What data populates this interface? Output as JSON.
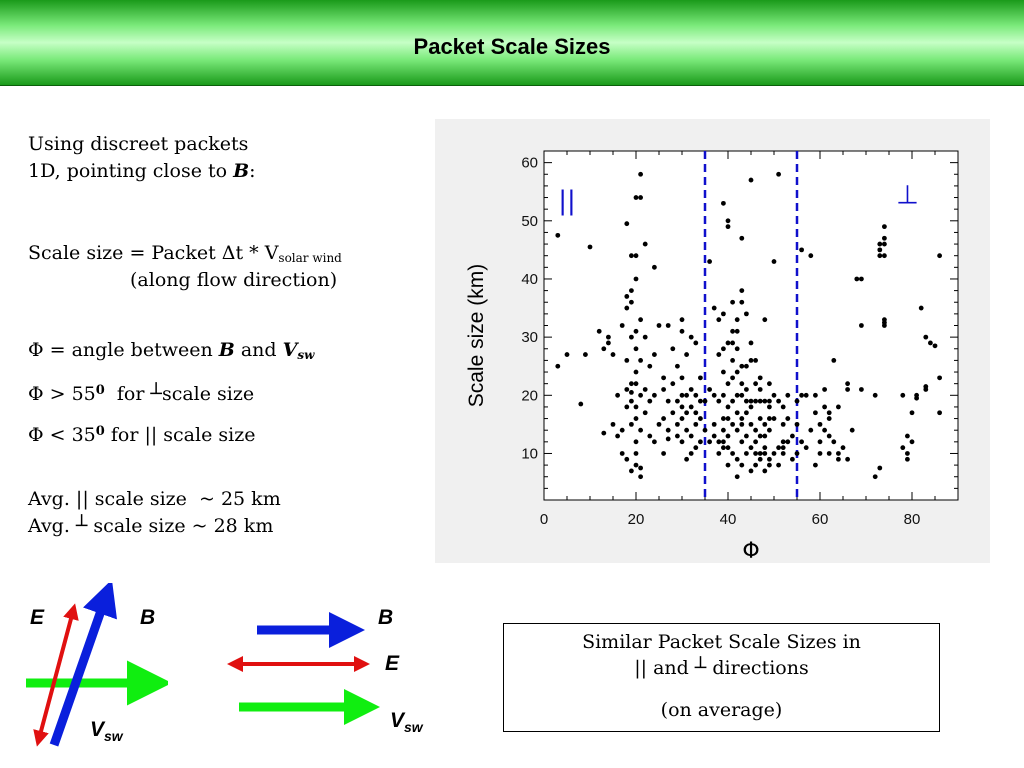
{
  "slide": {
    "title": "Packet Scale Sizes"
  },
  "left_text": {
    "line1": "Using discreet packets",
    "line2_prefix": "1D, pointing close to ",
    "line2_b": "B",
    "line2_suffix": ":",
    "scale_prefix": "Scale size = Packet Δt * V",
    "scale_sub": "solar wind",
    "scale_line2": "(along flow direction)",
    "phi_prefix": "Φ = angle between ",
    "phi_b": "B",
    "phi_and": " and ",
    "phi_v": "V",
    "phi_v_sub": "sw",
    "perp_prefix": "Φ > 55",
    "perp_deg": "0",
    "perp_for": "  for ",
    "perp_symbol": "┴",
    "perp_suffix": "scale size",
    "par_prefix": "Φ < 35",
    "par_deg": "0",
    "par_suffix": " for || scale size",
    "avg1": "Avg. || scale size  ~ 25 km",
    "avg2_prefix": "Avg. ",
    "avg2_symbol": "┴",
    "avg2_suffix": " scale size ~ 28 km"
  },
  "chart_data": {
    "type": "scatter",
    "xlabel": "Φ",
    "ylabel": "Scale size (km)",
    "xlim": [
      0,
      90
    ],
    "ylim": [
      2,
      62
    ],
    "xticks": [
      0,
      20,
      40,
      60,
      80
    ],
    "yticks": [
      10,
      20,
      30,
      40,
      50,
      60
    ],
    "vlines": [
      35,
      55
    ],
    "vline_color": "#1010cc",
    "annotations": [
      {
        "text": "||",
        "x": 5,
        "y": 52
      },
      {
        "text": "⊥",
        "x": 79,
        "y": 53
      }
    ],
    "points": [
      [
        3,
        47.5
      ],
      [
        3,
        25
      ],
      [
        5,
        27
      ],
      [
        8,
        18.5
      ],
      [
        9,
        27
      ],
      [
        10,
        45.5
      ],
      [
        12,
        31
      ],
      [
        13,
        13.5
      ],
      [
        13,
        28
      ],
      [
        14,
        29
      ],
      [
        14,
        30
      ],
      [
        15,
        15
      ],
      [
        15,
        27
      ],
      [
        16,
        13
      ],
      [
        16,
        20
      ],
      [
        17,
        10
      ],
      [
        17,
        32
      ],
      [
        17,
        14
      ],
      [
        18,
        9
      ],
      [
        18,
        18
      ],
      [
        18,
        21
      ],
      [
        18,
        26
      ],
      [
        18,
        35
      ],
      [
        18,
        37
      ],
      [
        18,
        49.5
      ],
      [
        19,
        7
      ],
      [
        19,
        15
      ],
      [
        19,
        19
      ],
      [
        19,
        22
      ],
      [
        19,
        30
      ],
      [
        19,
        38
      ],
      [
        19,
        44
      ],
      [
        19,
        20.5
      ],
      [
        19,
        36
      ],
      [
        20,
        12
      ],
      [
        20,
        18
      ],
      [
        20,
        22
      ],
      [
        20,
        24
      ],
      [
        20,
        28
      ],
      [
        20,
        31
      ],
      [
        20,
        40
      ],
      [
        20,
        44
      ],
      [
        20,
        54
      ],
      [
        20,
        10
      ],
      [
        20,
        16
      ],
      [
        20,
        8
      ],
      [
        21,
        6
      ],
      [
        21,
        14
      ],
      [
        21,
        20
      ],
      [
        21,
        26
      ],
      [
        21,
        33
      ],
      [
        21,
        58
      ],
      [
        21,
        54
      ],
      [
        21,
        7.5
      ],
      [
        22,
        17
      ],
      [
        22,
        21
      ],
      [
        22,
        30
      ],
      [
        22,
        46
      ],
      [
        23,
        13
      ],
      [
        23,
        19
      ],
      [
        23,
        25
      ],
      [
        24,
        12
      ],
      [
        24,
        20
      ],
      [
        24,
        27
      ],
      [
        24,
        42
      ],
      [
        25,
        15
      ],
      [
        25,
        32
      ],
      [
        26,
        16
      ],
      [
        26,
        21
      ],
      [
        26,
        23
      ],
      [
        26,
        10
      ],
      [
        27,
        14
      ],
      [
        27,
        19
      ],
      [
        27,
        32
      ],
      [
        27,
        12.5
      ],
      [
        28,
        17
      ],
      [
        28,
        22
      ],
      [
        28,
        28
      ],
      [
        29,
        13
      ],
      [
        29,
        15
      ],
      [
        29,
        19
      ],
      [
        29,
        25
      ],
      [
        30,
        12
      ],
      [
        30,
        16
      ],
      [
        30,
        18
      ],
      [
        30,
        23
      ],
      [
        30,
        31
      ],
      [
        30,
        33
      ],
      [
        30,
        20
      ],
      [
        31,
        9
      ],
      [
        31,
        14
      ],
      [
        31,
        17
      ],
      [
        31,
        20
      ],
      [
        31,
        27
      ],
      [
        32,
        10
      ],
      [
        32,
        13
      ],
      [
        32,
        18
      ],
      [
        32,
        21
      ],
      [
        32,
        30
      ],
      [
        33,
        11
      ],
      [
        33,
        15
      ],
      [
        33,
        17
      ],
      [
        33,
        20
      ],
      [
        33,
        29
      ],
      [
        34,
        12
      ],
      [
        34,
        16
      ],
      [
        34,
        19
      ],
      [
        34,
        23
      ],
      [
        35,
        14
      ],
      [
        35,
        19
      ],
      [
        36,
        12
      ],
      [
        36,
        21
      ],
      [
        36,
        43
      ],
      [
        37,
        15
      ],
      [
        37,
        20
      ],
      [
        37,
        35
      ],
      [
        37,
        13
      ],
      [
        38,
        12
      ],
      [
        38,
        19
      ],
      [
        38,
        27
      ],
      [
        38,
        33
      ],
      [
        38,
        10
      ],
      [
        39,
        11
      ],
      [
        39,
        16
      ],
      [
        39,
        20
      ],
      [
        39,
        24
      ],
      [
        39,
        28
      ],
      [
        39,
        34
      ],
      [
        39,
        14
      ],
      [
        39,
        12
      ],
      [
        39,
        53
      ],
      [
        40,
        8
      ],
      [
        40,
        11
      ],
      [
        40,
        13
      ],
      [
        40,
        16
      ],
      [
        40,
        18
      ],
      [
        40,
        22
      ],
      [
        40,
        29
      ],
      [
        40,
        50
      ],
      [
        40,
        49
      ],
      [
        41,
        10
      ],
      [
        41,
        15
      ],
      [
        41,
        19
      ],
      [
        41,
        23
      ],
      [
        41,
        26
      ],
      [
        41,
        31
      ],
      [
        41,
        36
      ],
      [
        41,
        29
      ],
      [
        42,
        6
      ],
      [
        42,
        9
      ],
      [
        42,
        14
      ],
      [
        42,
        17
      ],
      [
        42,
        20
      ],
      [
        42,
        24
      ],
      [
        42,
        28
      ],
      [
        42,
        31
      ],
      [
        42,
        33
      ],
      [
        43,
        8
      ],
      [
        43,
        12
      ],
      [
        43,
        15
      ],
      [
        43,
        16
      ],
      [
        43,
        20
      ],
      [
        43,
        22
      ],
      [
        43,
        25
      ],
      [
        43,
        36
      ],
      [
        43,
        38
      ],
      [
        43,
        47
      ],
      [
        44,
        10
      ],
      [
        44,
        13
      ],
      [
        44,
        17
      ],
      [
        44,
        19
      ],
      [
        44,
        25
      ],
      [
        44,
        34
      ],
      [
        44,
        21
      ],
      [
        45,
        7
      ],
      [
        45,
        11
      ],
      [
        45,
        15
      ],
      [
        45,
        18
      ],
      [
        45,
        26
      ],
      [
        45,
        29
      ],
      [
        45,
        57
      ],
      [
        45,
        19
      ],
      [
        46,
        8
      ],
      [
        46,
        12
      ],
      [
        46,
        14
      ],
      [
        46,
        19
      ],
      [
        46,
        22
      ],
      [
        46,
        26
      ],
      [
        46,
        10
      ],
      [
        47,
        9
      ],
      [
        47,
        13
      ],
      [
        47,
        16
      ],
      [
        47,
        19
      ],
      [
        47,
        21
      ],
      [
        47,
        23
      ],
      [
        47,
        10
      ],
      [
        48,
        7
      ],
      [
        48,
        10
      ],
      [
        48,
        11
      ],
      [
        48,
        15
      ],
      [
        48,
        19
      ],
      [
        48,
        33
      ],
      [
        48,
        13
      ],
      [
        49,
        8
      ],
      [
        49,
        14
      ],
      [
        49,
        16
      ],
      [
        49,
        19
      ],
      [
        49,
        22
      ],
      [
        49,
        18
      ],
      [
        49,
        9
      ],
      [
        50,
        10
      ],
      [
        50,
        16
      ],
      [
        50,
        20
      ],
      [
        50,
        43
      ],
      [
        51,
        8
      ],
      [
        51,
        11
      ],
      [
        51,
        19
      ],
      [
        51,
        58
      ],
      [
        52,
        12
      ],
      [
        52,
        15
      ],
      [
        52,
        18
      ],
      [
        52,
        10
      ],
      [
        52,
        11
      ],
      [
        53,
        12
      ],
      [
        53,
        16
      ],
      [
        53,
        20
      ],
      [
        54,
        9
      ],
      [
        54,
        13
      ],
      [
        55,
        10
      ],
      [
        55,
        15
      ],
      [
        55,
        19
      ],
      [
        56,
        20
      ],
      [
        56,
        12
      ],
      [
        56,
        45
      ],
      [
        57,
        11
      ],
      [
        57,
        20
      ],
      [
        58,
        14
      ],
      [
        58,
        44
      ],
      [
        59,
        8
      ],
      [
        59,
        17
      ],
      [
        59,
        20
      ],
      [
        60,
        10
      ],
      [
        60,
        12
      ],
      [
        60,
        15
      ],
      [
        61,
        14
      ],
      [
        61,
        18
      ],
      [
        61,
        21
      ],
      [
        62,
        10
      ],
      [
        62,
        13
      ],
      [
        62,
        16
      ],
      [
        62,
        17
      ],
      [
        63,
        12
      ],
      [
        63,
        26
      ],
      [
        64,
        9
      ],
      [
        64,
        10
      ],
      [
        64,
        18
      ],
      [
        65,
        11
      ],
      [
        66,
        9
      ],
      [
        66,
        22
      ],
      [
        66,
        21
      ],
      [
        67,
        14
      ],
      [
        68,
        40
      ],
      [
        69,
        21
      ],
      [
        69,
        32
      ],
      [
        69,
        40
      ],
      [
        72,
        6
      ],
      [
        72,
        20
      ],
      [
        73,
        7.5
      ],
      [
        73,
        44
      ],
      [
        73,
        46
      ],
      [
        73,
        45
      ],
      [
        74,
        33
      ],
      [
        74,
        32
      ],
      [
        74,
        44
      ],
      [
        74,
        47
      ],
      [
        74,
        49
      ],
      [
        74,
        46
      ],
      [
        74,
        32.5
      ],
      [
        78,
        20
      ],
      [
        78,
        11
      ],
      [
        79,
        10
      ],
      [
        79,
        9
      ],
      [
        79,
        13
      ],
      [
        80,
        12
      ],
      [
        80,
        17
      ],
      [
        81,
        19.5
      ],
      [
        81,
        20
      ],
      [
        82,
        35
      ],
      [
        83,
        30
      ],
      [
        83,
        21
      ],
      [
        83,
        21.5
      ],
      [
        84,
        29
      ],
      [
        86,
        44
      ],
      [
        86,
        17
      ],
      [
        86,
        23
      ],
      [
        85,
        28.5
      ]
    ]
  },
  "diagrams": {
    "left": {
      "e": "E",
      "b": "B",
      "v": "V",
      "v_sub": "sw"
    },
    "middle": {
      "b": "B",
      "e": "E",
      "v": "V",
      "v_sub": "sw"
    },
    "colors": {
      "b": "#0a1fdc",
      "e": "#e01010",
      "v": "#10ee10"
    }
  },
  "note": {
    "line1": "Similar Packet Scale Sizes in",
    "line2_prefix": "|| and ",
    "line2_symbol": "┴",
    "line2_suffix": " directions",
    "line3": "(on average)"
  }
}
